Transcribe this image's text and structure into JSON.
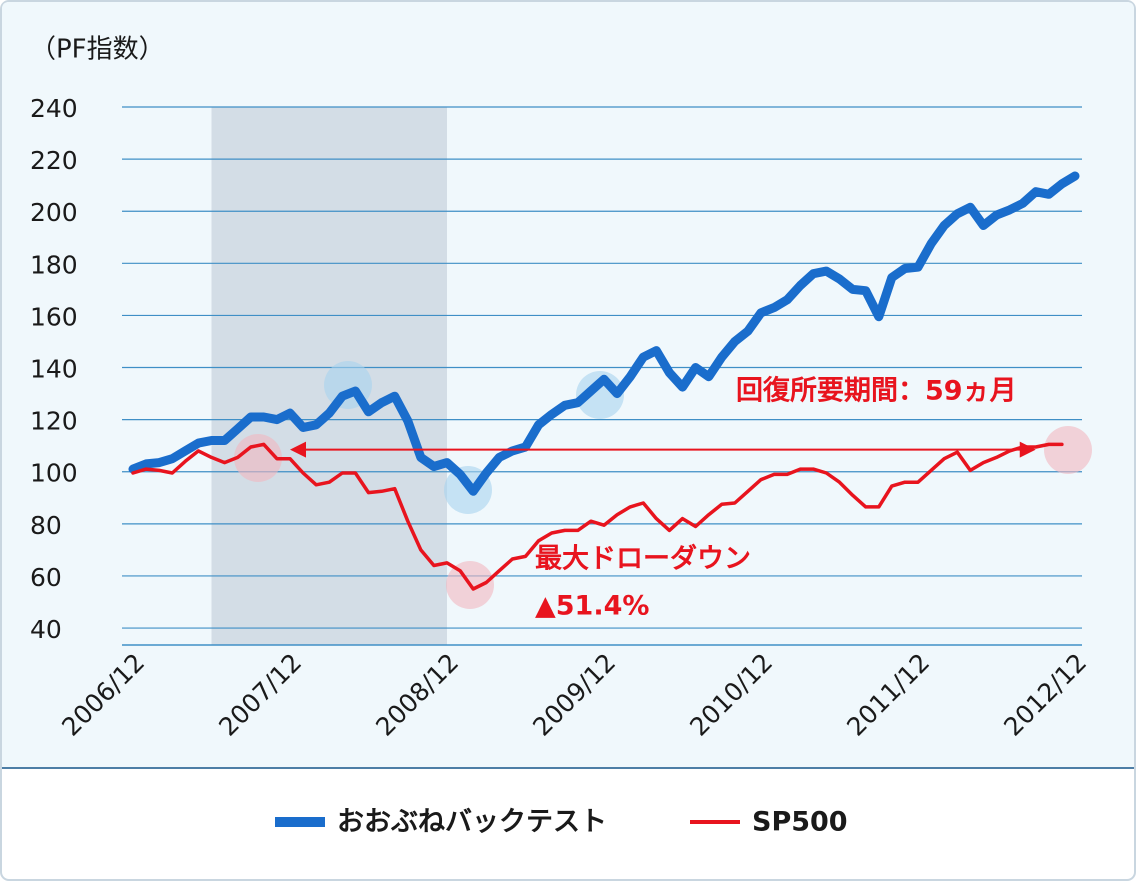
{
  "chart_data": {
    "type": "line",
    "y_axis_label": "（PF指数）",
    "categories": [
      "2006/12",
      null,
      null,
      null,
      null,
      null,
      null,
      null,
      null,
      null,
      null,
      null,
      "2007/12",
      null,
      null,
      null,
      null,
      null,
      null,
      null,
      null,
      null,
      null,
      null,
      "2008/12",
      null,
      null,
      null,
      null,
      null,
      null,
      null,
      null,
      null,
      null,
      null,
      "2009/12",
      null,
      null,
      null,
      null,
      null,
      null,
      null,
      null,
      null,
      null,
      null,
      "2010/12",
      null,
      null,
      null,
      null,
      null,
      null,
      null,
      null,
      null,
      null,
      null,
      "2011/12",
      null,
      null,
      null,
      null,
      null,
      null,
      null,
      null,
      null,
      null,
      null,
      "2012/12"
    ],
    "series": [
      {
        "name": "おおぶねバックテスト",
        "color": "#1a6dcc",
        "width": 9,
        "values": [
          101,
          103,
          103.5,
          105,
          108,
          111,
          112,
          112,
          116.5,
          121,
          121,
          120,
          122.5,
          117,
          118,
          122.5,
          129,
          131,
          123,
          126.5,
          129,
          119.5,
          105.5,
          102,
          103.5,
          99,
          92.5,
          99.5,
          105.5,
          108,
          109.5,
          118,
          122,
          125.5,
          126.5,
          131,
          135.5,
          130,
          136.5,
          144,
          146.5,
          138,
          132.5,
          140,
          136.5,
          144,
          150,
          154,
          161,
          163,
          166,
          171.5,
          176,
          177,
          174,
          170,
          169.5,
          159.5,
          174.5,
          178,
          178.5,
          187.5,
          194.5,
          199,
          201.5,
          194.5,
          198.5,
          200.5,
          203,
          207.5,
          206.5,
          210.5,
          213.5
        ]
      },
      {
        "name": "SP500",
        "color": "#e8141e",
        "width": 3.5,
        "values": [
          99.5,
          101,
          100.5,
          99.5,
          104,
          108,
          105.5,
          103.5,
          105.5,
          109.5,
          110.5,
          105,
          105,
          99.5,
          95,
          96,
          99.5,
          99.5,
          92,
          92.5,
          93.5,
          81,
          70,
          64,
          65,
          62,
          55,
          57.5,
          62,
          66.5,
          67.5,
          73.5,
          76.5,
          77.5,
          77.5,
          81,
          79.5,
          83.5,
          86.5,
          88,
          82,
          77.5,
          82,
          79,
          83.5,
          87.5,
          88,
          92.5,
          97,
          99,
          99,
          101,
          101,
          99.5,
          96,
          91,
          86.5,
          86.5,
          94.5,
          96,
          96,
          100.5,
          105,
          107.5,
          100.5,
          103.5,
          105.5,
          108,
          109.5,
          109.5,
          110.5,
          110.5,
          null
        ]
      }
    ],
    "ylim": [
      33.5,
      240
    ],
    "yticks": [
      40,
      60,
      80,
      100,
      120,
      140,
      160,
      180,
      200,
      220,
      240
    ],
    "grid": true,
    "shaded_range": [
      6,
      24
    ],
    "recovery_arrow": {
      "from": 12,
      "to": 69,
      "level": 108.5
    },
    "annotations": [
      "回復所要期間：59ヵ月",
      "最大ドローダウン",
      "▲51.4%"
    ]
  }
}
